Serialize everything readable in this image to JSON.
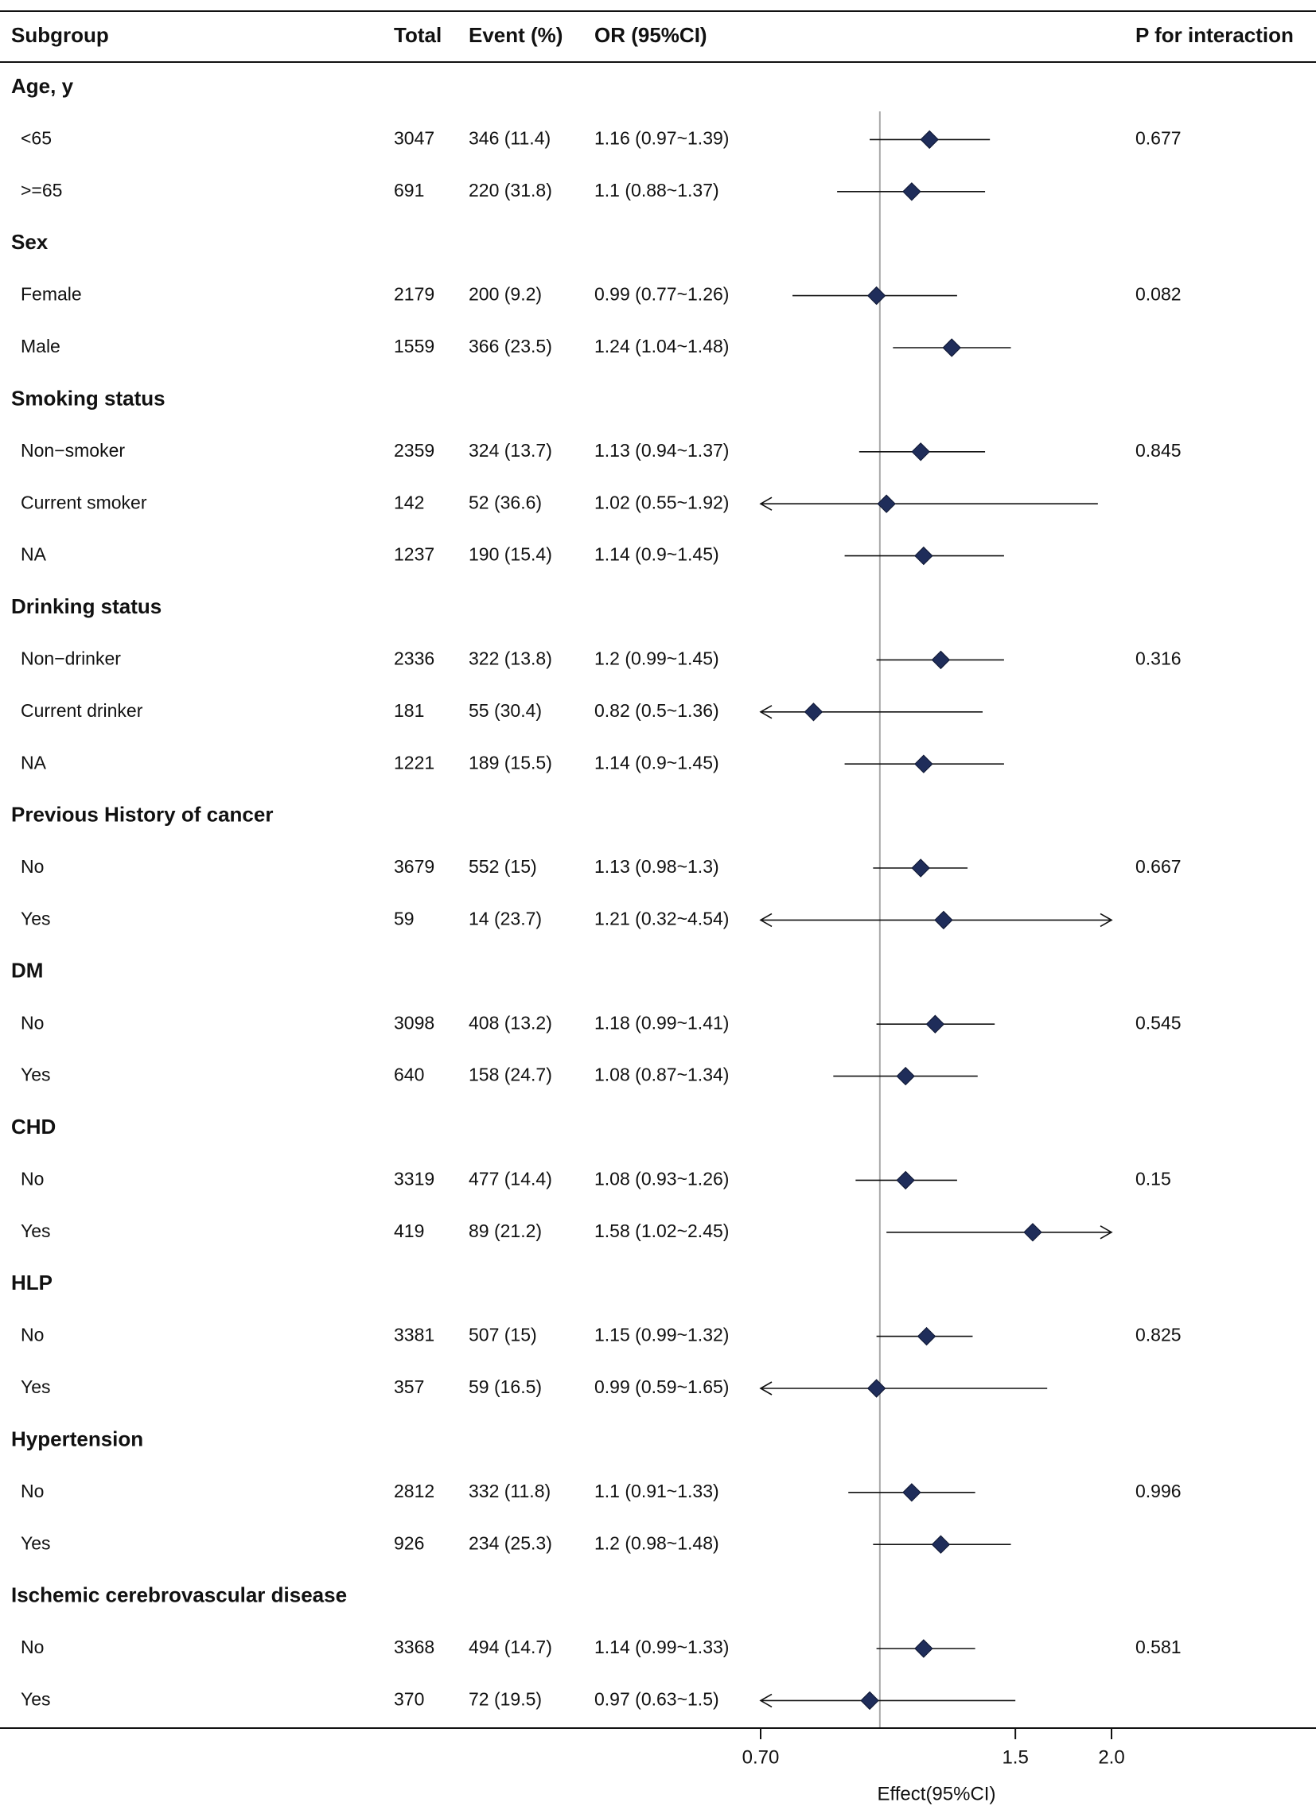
{
  "chart_data": {
    "type": "forest",
    "headers": {
      "subgroup": "Subgroup",
      "total": "Total",
      "event": "Event (%)",
      "or": "OR (95%CI)",
      "p": "P for interaction"
    },
    "xlabel": "Effect(95%CI)",
    "reference_line": 1.0,
    "xlim": [
      0.7,
      2.0
    ],
    "xticks": [
      "0.70",
      "1.5",
      "2.0"
    ],
    "series_color": "#1f2d5a",
    "groups": [
      {
        "name": "Age, y",
        "rows": [
          {
            "label": "<65",
            "total": "3047",
            "event": "346 (11.4)",
            "or_text": "1.16 (0.97~1.39)",
            "or": 1.16,
            "lo": 0.97,
            "hi": 1.39,
            "p": "0.677"
          },
          {
            "label": ">=65",
            "total": "691",
            "event": "220 (31.8)",
            "or_text": "1.1 (0.88~1.37)",
            "or": 1.1,
            "lo": 0.88,
            "hi": 1.37,
            "p": ""
          }
        ]
      },
      {
        "name": "Sex",
        "rows": [
          {
            "label": "Female",
            "total": "2179",
            "event": "200 (9.2)",
            "or_text": "0.99 (0.77~1.26)",
            "or": 0.99,
            "lo": 0.77,
            "hi": 1.26,
            "p": "0.082"
          },
          {
            "label": "Male",
            "total": "1559",
            "event": "366 (23.5)",
            "or_text": "1.24 (1.04~1.48)",
            "or": 1.24,
            "lo": 1.04,
            "hi": 1.48,
            "p": ""
          }
        ]
      },
      {
        "name": "Smoking status",
        "rows": [
          {
            "label": "Non−smoker",
            "total": "2359",
            "event": "324 (13.7)",
            "or_text": "1.13 (0.94~1.37)",
            "or": 1.13,
            "lo": 0.94,
            "hi": 1.37,
            "p": "0.845"
          },
          {
            "label": "Current smoker",
            "total": "142",
            "event": "52 (36.6)",
            "or_text": "1.02 (0.55~1.92)",
            "or": 1.02,
            "lo": 0.55,
            "hi": 1.92,
            "p": ""
          },
          {
            "label": "NA",
            "total": "1237",
            "event": "190 (15.4)",
            "or_text": "1.14 (0.9~1.45)",
            "or": 1.14,
            "lo": 0.9,
            "hi": 1.45,
            "p": ""
          }
        ]
      },
      {
        "name": "Drinking status",
        "rows": [
          {
            "label": "Non−drinker",
            "total": "2336",
            "event": "322 (13.8)",
            "or_text": "1.2 (0.99~1.45)",
            "or": 1.2,
            "lo": 0.99,
            "hi": 1.45,
            "p": "0.316"
          },
          {
            "label": "Current drinker",
            "total": "181",
            "event": "55 (30.4)",
            "or_text": "0.82 (0.5~1.36)",
            "or": 0.82,
            "lo": 0.5,
            "hi": 1.36,
            "p": ""
          },
          {
            "label": "NA",
            "total": "1221",
            "event": "189 (15.5)",
            "or_text": "1.14 (0.9~1.45)",
            "or": 1.14,
            "lo": 0.9,
            "hi": 1.45,
            "p": ""
          }
        ]
      },
      {
        "name": "Previous History of cancer",
        "rows": [
          {
            "label": "No",
            "total": "3679",
            "event": "552 (15)",
            "or_text": "1.13 (0.98~1.3)",
            "or": 1.13,
            "lo": 0.98,
            "hi": 1.3,
            "p": "0.667"
          },
          {
            "label": "Yes",
            "total": "59",
            "event": "14 (23.7)",
            "or_text": "1.21 (0.32~4.54)",
            "or": 1.21,
            "lo": 0.32,
            "hi": 4.54,
            "p": ""
          }
        ]
      },
      {
        "name": "DM",
        "rows": [
          {
            "label": "No",
            "total": "3098",
            "event": "408 (13.2)",
            "or_text": "1.18 (0.99~1.41)",
            "or": 1.18,
            "lo": 0.99,
            "hi": 1.41,
            "p": "0.545"
          },
          {
            "label": "Yes",
            "total": "640",
            "event": "158 (24.7)",
            "or_text": "1.08 (0.87~1.34)",
            "or": 1.08,
            "lo": 0.87,
            "hi": 1.34,
            "p": ""
          }
        ]
      },
      {
        "name": "CHD",
        "rows": [
          {
            "label": "No",
            "total": "3319",
            "event": "477 (14.4)",
            "or_text": "1.08 (0.93~1.26)",
            "or": 1.08,
            "lo": 0.93,
            "hi": 1.26,
            "p": "0.15"
          },
          {
            "label": "Yes",
            "total": "419",
            "event": "89 (21.2)",
            "or_text": "1.58 (1.02~2.45)",
            "or": 1.58,
            "lo": 1.02,
            "hi": 2.45,
            "p": ""
          }
        ]
      },
      {
        "name": "HLP",
        "rows": [
          {
            "label": "No",
            "total": "3381",
            "event": "507 (15)",
            "or_text": "1.15 (0.99~1.32)",
            "or": 1.15,
            "lo": 0.99,
            "hi": 1.32,
            "p": "0.825"
          },
          {
            "label": "Yes",
            "total": "357",
            "event": "59 (16.5)",
            "or_text": "0.99 (0.59~1.65)",
            "or": 0.99,
            "lo": 0.59,
            "hi": 1.65,
            "p": ""
          }
        ]
      },
      {
        "name": "Hypertension",
        "rows": [
          {
            "label": "No",
            "total": "2812",
            "event": "332 (11.8)",
            "or_text": "1.1 (0.91~1.33)",
            "or": 1.1,
            "lo": 0.91,
            "hi": 1.33,
            "p": "0.996"
          },
          {
            "label": "Yes",
            "total": "926",
            "event": "234 (25.3)",
            "or_text": "1.2 (0.98~1.48)",
            "or": 1.2,
            "lo": 0.98,
            "hi": 1.48,
            "p": ""
          }
        ]
      },
      {
        "name": "Ischemic cerebrovascular disease",
        "rows": [
          {
            "label": "No",
            "total": "3368",
            "event": "494 (14.7)",
            "or_text": "1.14 (0.99~1.33)",
            "or": 1.14,
            "lo": 0.99,
            "hi": 1.33,
            "p": "0.581"
          },
          {
            "label": "Yes",
            "total": "370",
            "event": "72 (19.5)",
            "or_text": "0.97 (0.63~1.5)",
            "or": 0.97,
            "lo": 0.63,
            "hi": 1.5,
            "p": ""
          }
        ]
      }
    ]
  }
}
